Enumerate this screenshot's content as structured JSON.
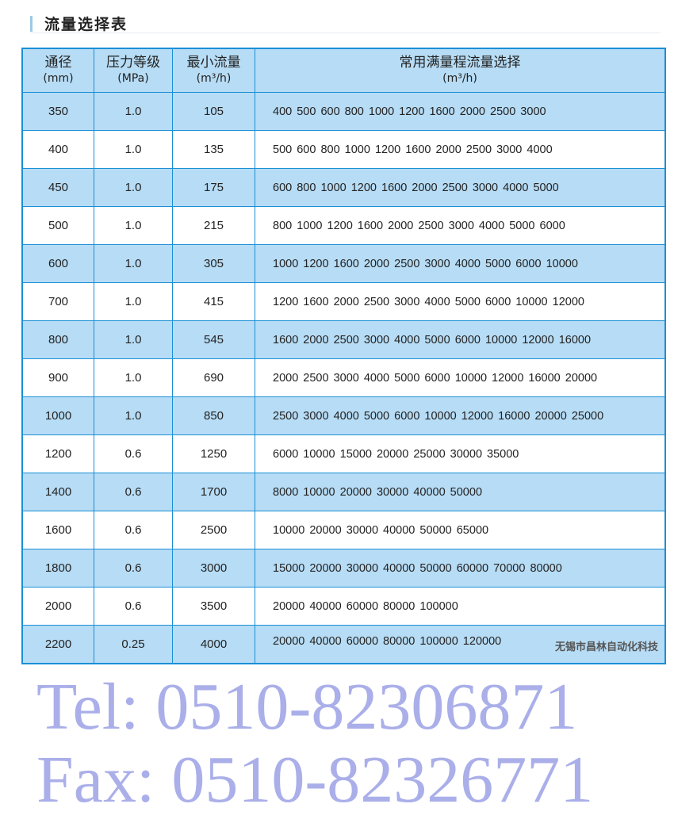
{
  "title": "流量选择表",
  "headers": [
    {
      "label": "通径",
      "unit": "(mm)"
    },
    {
      "label": "压力等级",
      "unit": "(MPa)"
    },
    {
      "label": "最小流量",
      "unit": "(m³/h)"
    },
    {
      "label": "常用满量程流量选择",
      "unit": "(m³/h)"
    }
  ],
  "rows": [
    [
      "350",
      "1.0",
      "105",
      "400 500 600 800 1000 1200 1600 2000 2500 3000"
    ],
    [
      "400",
      "1.0",
      "135",
      "500 600 800 1000 1200 1600 2000 2500 3000 4000"
    ],
    [
      "450",
      "1.0",
      "175",
      "600 800 1000 1200 1600 2000 2500 3000 4000 5000"
    ],
    [
      "500",
      "1.0",
      "215",
      "800 1000 1200 1600 2000 2500 3000 4000 5000 6000"
    ],
    [
      "600",
      "1.0",
      "305",
      "1000 1200 1600 2000 2500 3000 4000 5000 6000 10000"
    ],
    [
      "700",
      "1.0",
      "415",
      "1200 1600 2000 2500 3000 4000 5000 6000 10000 12000"
    ],
    [
      "800",
      "1.0",
      "545",
      "1600 2000 2500 3000 4000 5000 6000 10000 12000 16000"
    ],
    [
      "900",
      "1.0",
      "690",
      "2000 2500 3000 4000 5000 6000 10000 12000 16000 20000"
    ],
    [
      "1000",
      "1.0",
      "850",
      "2500 3000 4000 5000 6000 10000 12000 16000 20000 25000"
    ],
    [
      "1200",
      "0.6",
      "1250",
      "6000 10000 15000 20000 25000 30000 35000"
    ],
    [
      "1400",
      "0.6",
      "1700",
      "8000 10000 20000 30000 40000 50000"
    ],
    [
      "1600",
      "0.6",
      "2500",
      "10000 20000 30000 40000 50000 65000"
    ],
    [
      "1800",
      "0.6",
      "3000",
      "15000 20000 30000 40000 50000 60000 70000 80000"
    ],
    [
      "2000",
      "0.6",
      "3500",
      "20000 40000 60000 80000 100000"
    ],
    [
      "2200",
      "0.25",
      "4000",
      "20000 40000 60000 80000 100000 120000"
    ]
  ],
  "watermark": {
    "tel": "Tel: 0510-82306871",
    "fax": "Fax: 0510-82326771"
  },
  "company": "无锡市昌林自动化科技",
  "colors": {
    "row_blue": "#b7dcf5",
    "border": "#1a8fd6",
    "watermark": "#6e78d7"
  }
}
